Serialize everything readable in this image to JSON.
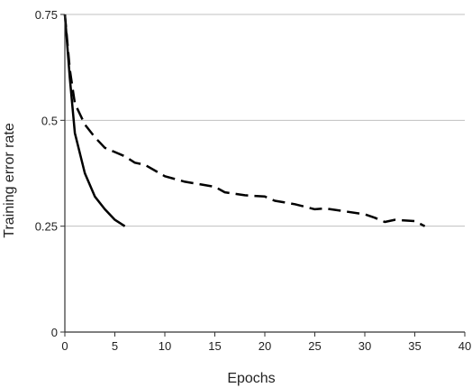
{
  "chart_data": {
    "type": "line",
    "xlabel": "Epochs",
    "ylabel": "Training error rate",
    "xlim": [
      0,
      40
    ],
    "ylim": [
      0,
      0.75
    ],
    "x_ticks": [
      0,
      5,
      10,
      15,
      20,
      25,
      30,
      35,
      40
    ],
    "y_ticks": [
      0,
      0.25,
      0.5,
      0.75
    ],
    "x_tick_labels": [
      "0",
      "5",
      "10",
      "15",
      "20",
      "25",
      "30",
      "35",
      "40"
    ],
    "y_tick_labels": [
      "0",
      "0.25",
      "0.5",
      "0.75"
    ],
    "grid": {
      "horizontal": true,
      "vertical": false,
      "color": "#c0c0c0"
    },
    "line_color": "#000000",
    "series": [
      {
        "style": "solid",
        "x": [
          0,
          0.5,
          1,
          2,
          3,
          4,
          5,
          6
        ],
        "y": [
          0.75,
          0.6,
          0.47,
          0.375,
          0.32,
          0.29,
          0.265,
          0.25
        ]
      },
      {
        "style": "dashed",
        "x": [
          0,
          0.5,
          1,
          2,
          3,
          4,
          5,
          6,
          7,
          8,
          10,
          12,
          15,
          16,
          18,
          20,
          21,
          23,
          25,
          26,
          28,
          30,
          31,
          32,
          33,
          35,
          36
        ],
        "y": [
          0.75,
          0.62,
          0.54,
          0.49,
          0.46,
          0.435,
          0.425,
          0.415,
          0.4,
          0.395,
          0.368,
          0.355,
          0.343,
          0.33,
          0.323,
          0.32,
          0.31,
          0.302,
          0.29,
          0.292,
          0.285,
          0.278,
          0.27,
          0.26,
          0.265,
          0.262,
          0.25
        ]
      }
    ]
  }
}
